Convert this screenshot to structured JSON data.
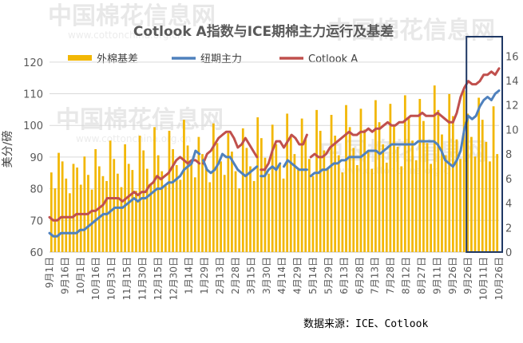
{
  "watermark": {
    "brand": "中国棉花信息网",
    "url": "www.cottonchina.org.cn"
  },
  "source_note": "数据来源：ICE、Cotlook",
  "colors": {
    "basis": "#F2B705",
    "ice": "#4F81BD",
    "cotlook": "#C0504D",
    "highlight_box": "#1F3864",
    "text": "#595959"
  },
  "chart_data": {
    "type": "bar+line",
    "title": "Cotlook A指数与ICE期棉主力运行及基差",
    "ylabel": "美分/磅",
    "ylim": [
      60,
      125
    ],
    "yticks": [
      60,
      70,
      80,
      90,
      100,
      110,
      120
    ],
    "y2lim": [
      0,
      16.8
    ],
    "y2ticks": [
      0,
      2,
      4,
      6,
      8,
      10,
      12,
      14,
      16
    ],
    "x_tick_labels": [
      "9月1日",
      "9月16日",
      "10月1日",
      "10月16日",
      "10月31日",
      "11月15日",
      "11月30日",
      "12月15日",
      "12月30日",
      "1月14日",
      "1月29日",
      "2月13日",
      "2月28日",
      "3月15日",
      "3月30日",
      "4月14日",
      "4月29日",
      "5月14日",
      "5月29日",
      "6月13日",
      "6月28日",
      "7月13日",
      "7月28日",
      "8月12日",
      "8月27日",
      "9月11日",
      "9月26日",
      "9月26日",
      "10月11日",
      "10月26日"
    ],
    "legend": [
      {
        "name": "外棉基差",
        "kind": "bar",
        "color": "#F2B705"
      },
      {
        "name": "纽期主力",
        "kind": "line",
        "color": "#4F81BD"
      },
      {
        "name": "Cotlook A",
        "kind": "line",
        "color": "#C0504D"
      }
    ],
    "legend_position": "top",
    "highlight_region": {
      "from_label": "9月26日",
      "to_label": "10月26日",
      "segment": "second"
    },
    "series": [
      {
        "name": "Cotlook A",
        "axis": "left",
        "values": [
          71,
          70,
          70,
          71,
          71,
          71,
          71,
          72,
          72,
          72,
          72,
          73,
          73,
          74,
          75,
          77,
          77,
          77,
          77,
          76,
          77,
          78,
          79,
          78,
          79,
          79,
          81,
          82,
          84,
          83,
          84,
          85,
          87,
          89,
          90,
          89,
          88,
          89,
          89,
          88,
          88,
          91,
          92,
          94,
          96,
          97,
          98,
          98,
          96,
          93,
          94,
          96,
          94,
          92,
          90,
          86,
          86,
          88,
          92,
          95,
          95,
          93,
          95,
          97,
          96,
          94,
          94,
          97,
          90,
          91,
          90,
          90,
          91,
          93,
          94,
          95,
          96,
          97,
          98,
          97,
          97,
          98,
          98,
          99,
          98,
          99,
          99,
          100,
          101,
          100,
          100,
          101,
          101,
          102,
          103,
          103,
          103,
          104,
          103,
          103,
          103,
          104,
          103,
          102,
          101,
          101,
          104,
          109,
          112,
          114,
          113,
          113,
          114,
          116,
          116,
          117,
          116,
          118
        ],
        "gaps": [
          [
            39,
            40
          ],
          [
            54,
            55
          ],
          [
            67,
            68
          ]
        ]
      },
      {
        "name": "纽期主力",
        "axis": "left",
        "values": [
          66,
          65,
          65,
          66,
          66,
          66,
          66,
          66,
          67,
          67,
          68,
          69,
          70,
          71,
          72,
          72,
          73,
          74,
          74,
          74,
          75,
          76,
          77,
          76,
          77,
          77,
          78,
          79,
          80,
          80,
          81,
          82,
          82,
          83,
          84,
          86,
          87,
          88,
          92,
          91,
          89,
          86,
          85,
          86,
          88,
          91,
          90,
          90,
          88,
          86,
          85,
          84,
          85,
          86,
          87,
          84,
          84,
          86,
          87,
          86,
          88,
          87,
          89,
          88,
          87,
          86,
          86,
          86,
          84,
          85,
          85,
          86,
          86,
          87,
          88,
          88,
          89,
          89,
          90,
          90,
          90,
          90,
          91,
          92,
          92,
          92,
          91,
          92,
          93,
          94,
          94,
          94,
          94,
          94,
          94,
          94,
          95,
          95,
          95,
          95,
          95,
          94,
          92,
          89,
          88,
          87,
          89,
          92,
          99,
          103,
          102,
          103,
          106,
          108,
          109,
          108,
          110,
          111
        ],
        "gaps": [
          [
            39,
            40
          ],
          [
            54,
            55
          ],
          [
            60,
            61
          ],
          [
            67,
            68
          ]
        ]
      },
      {
        "name": "外棉基差",
        "axis": "right",
        "type": "bar",
        "values": [
          6.5,
          5.2,
          8.1,
          7.4,
          6.0,
          4.8,
          7.2,
          6.9,
          5.5,
          7.8,
          6.3,
          5.1,
          8.4,
          7.0,
          6.2,
          5.8,
          9.1,
          7.6,
          6.4,
          5.3,
          8.8,
          7.2,
          6.7,
          5.0,
          9.5,
          8.3,
          6.8,
          5.6,
          10.2,
          7.9,
          6.6,
          5.4,
          9.9,
          8.4,
          7.1,
          5.9,
          10.8,
          8.7,
          7.3,
          6.1,
          9.4,
          8.0,
          6.9,
          5.7,
          10.5,
          8.9,
          7.4,
          6.3,
          9.7,
          8.2,
          6.6,
          5.2,
          10.1,
          8.5,
          7.0,
          5.8,
          11.0,
          9.3,
          7.7,
          6.4,
          10.4,
          8.8,
          7.2,
          6.0,
          11.3,
          9.6,
          8.0,
          6.7,
          10.9,
          9.2,
          7.6,
          6.2,
          11.6,
          9.9,
          8.3,
          6.9,
          11.2,
          9.5,
          7.9,
          6.5,
          12.0,
          10.2,
          8.5,
          7.1,
          11.7,
          10.0,
          8.2,
          6.8,
          12.4,
          10.6,
          8.8,
          7.3,
          12.1,
          10.3,
          8.6,
          7.0,
          12.8,
          11.0,
          9.1,
          7.5,
          12.5,
          10.7,
          8.9,
          7.2,
          13.6,
          11.6,
          9.6,
          7.9,
          12.9,
          11.1,
          9.2,
          7.6,
          13.2,
          11.3,
          9.4,
          7.8,
          12.6,
          10.8,
          9.0,
          7.4,
          11.9,
          8.0
        ]
      }
    ]
  }
}
